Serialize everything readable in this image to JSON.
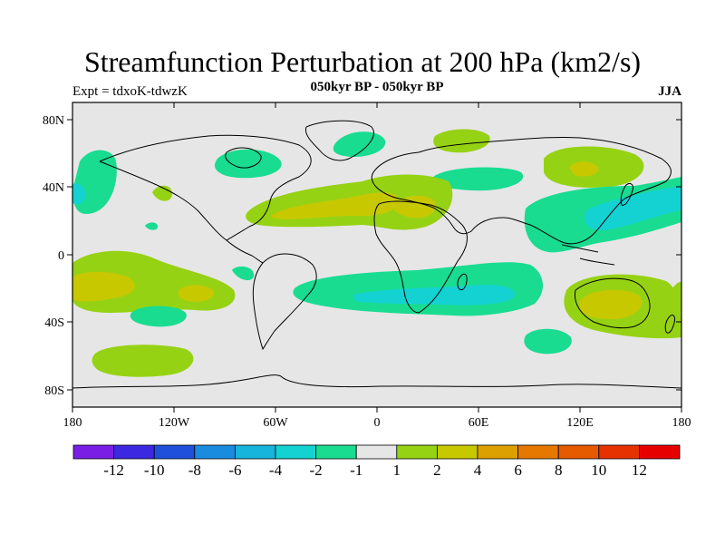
{
  "title": "Streamfunction Perturbation at 200 hPa (km2/s)",
  "left_string": "Expt = tdxoK-tdwzK",
  "center_string": "050kyr BP - 050kyr BP",
  "right_string": "JJA",
  "lat_ticks": [
    "80N",
    "40N",
    "0",
    "40S",
    "80S"
  ],
  "lon_ticks": [
    "180",
    "120W",
    "60W",
    "0",
    "60E",
    "120E",
    "180"
  ],
  "colorbar": {
    "colors": [
      "#7a1ee6",
      "#3c28e0",
      "#1e50dc",
      "#1a8ce0",
      "#17b4dc",
      "#14d2d2",
      "#19dc91",
      "#e6e6e6",
      "#96d214",
      "#c8c800",
      "#dca000",
      "#e67800",
      "#e65a00",
      "#e63200",
      "#e60000"
    ],
    "labels": [
      "-12",
      "-10",
      "-8",
      "-6",
      "-4",
      "-2",
      "-1",
      "1",
      "2",
      "4",
      "6",
      "8",
      "10",
      "12"
    ]
  },
  "colors": {
    "ocean_background": "#e6e6e6",
    "positive_light": "#96d214",
    "positive_mid": "#c8c800",
    "negative_light": "#19dc91",
    "negative_mid": "#14d2d2"
  }
}
